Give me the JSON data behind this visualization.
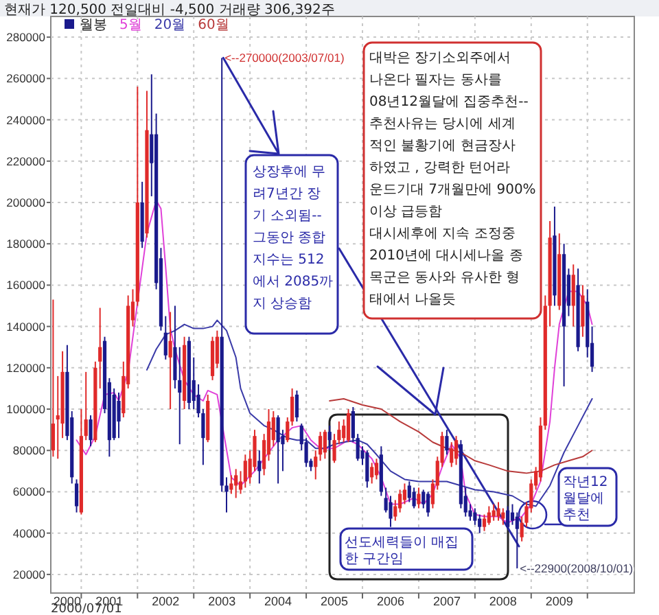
{
  "chart_data": {
    "type": "candlestick",
    "title": "현재가 120,500   전일대비 -4,500   거래량 306,392주",
    "xlim": [
      "2000-06-16",
      "2010-11-01"
    ],
    "ylim": [
      11000,
      290000
    ],
    "yticks": [
      20000,
      40000,
      60000,
      80000,
      100000,
      120000,
      140000,
      160000,
      180000,
      200000,
      220000,
      240000,
      260000,
      280000
    ],
    "xticks": [
      {
        "value": "2000-10",
        "label": "2000"
      },
      {
        "value": "2001-01",
        "label": null
      },
      {
        "value": "2001-07",
        "label": "2001"
      },
      {
        "value": "2002-01",
        "label": null
      },
      {
        "value": "2002-07",
        "label": "2002"
      },
      {
        "value": "2003-01",
        "label": null
      },
      {
        "value": "2003-07",
        "label": "2003"
      },
      {
        "value": "2004-01",
        "label": null
      },
      {
        "value": "2004-07",
        "label": "2004"
      },
      {
        "value": "2005-01",
        "label": null
      },
      {
        "value": "2005-07",
        "label": "2005"
      },
      {
        "value": "2006-01",
        "label": null
      },
      {
        "value": "2006-07",
        "label": "2006"
      },
      {
        "value": "2007-01",
        "label": null
      },
      {
        "value": "2007-07",
        "label": "2007"
      },
      {
        "value": "2008-01",
        "label": null
      },
      {
        "value": "2008-07",
        "label": "2008"
      },
      {
        "value": "2009-01",
        "label": null
      },
      {
        "value": "2009-07",
        "label": "2009"
      },
      {
        "value": "2010-01",
        "label": null
      }
    ],
    "grid": true,
    "legend": "top left",
    "series": [
      {
        "color": "#e02a2a",
        "x": [
          "2000-07",
          "2000-08",
          "2000-09",
          "2001-01",
          "2001-02",
          "2001-04",
          "2001-05",
          "2001-10",
          "2001-11",
          "2001-12",
          "2002-01",
          "2002-03",
          "2002-08",
          "2002-11",
          "2003-04",
          "2003-05",
          "2003-06",
          "2003-09",
          "2003-10",
          "2003-11",
          "2003-12",
          "2004-01",
          "2004-02",
          "2004-04",
          "2004-05",
          "2004-06",
          "2004-09",
          "2004-10",
          "2005-03",
          "2005-04",
          "2005-05",
          "2005-07",
          "2005-08",
          "2005-09",
          "2005-10",
          "2006-03",
          "2006-04",
          "2006-08",
          "2006-09",
          "2006-10",
          "2007-01",
          "2007-04",
          "2007-05",
          "2007-06",
          "2007-08",
          "2007-09",
          "2008-03",
          "2008-04",
          "2008-05",
          "2008-06",
          "2008-07",
          "2008-11",
          "2008-12",
          "2009-01",
          "2009-02",
          "2009-03",
          "2009-04",
          "2009-05",
          "2009-07",
          "2009-10",
          "2009-12"
        ],
        "ohlc": [
          [
            80000,
            153000,
            77000,
            93000
          ],
          [
            95000,
            116000,
            76000,
            97000
          ],
          [
            93000,
            128000,
            86000,
            118000
          ],
          [
            50000,
            100000,
            49000,
            87000
          ],
          [
            87000,
            118000,
            85000,
            95000
          ],
          [
            85000,
            123000,
            84000,
            120000
          ],
          [
            123000,
            149000,
            110000,
            130000
          ],
          [
            98000,
            123000,
            96000,
            116000
          ],
          [
            112000,
            155000,
            110000,
            150000
          ],
          [
            143000,
            158000,
            140000,
            152000
          ],
          [
            152000,
            256000,
            150000,
            200000
          ],
          [
            185000,
            254000,
            183000,
            235000
          ],
          [
            125000,
            147000,
            100000,
            133000
          ],
          [
            104000,
            135000,
            100000,
            131000
          ],
          [
            85000,
            107000,
            84000,
            104000
          ],
          [
            116000,
            135000,
            114000,
            133000
          ],
          [
            122000,
            138000,
            120000,
            135000
          ],
          [
            61000,
            68000,
            59000,
            64000
          ],
          [
            63000,
            71000,
            57000,
            68000
          ],
          [
            61000,
            70000,
            59000,
            65000
          ],
          [
            65000,
            78000,
            62000,
            75000
          ],
          [
            67000,
            80000,
            64000,
            76000
          ],
          [
            72000,
            90000,
            70000,
            87000
          ],
          [
            71000,
            88000,
            68000,
            85000
          ],
          [
            78000,
            100000,
            75000,
            94000
          ],
          [
            85000,
            99000,
            82000,
            96000
          ],
          [
            85000,
            96000,
            84000,
            94000
          ],
          [
            94000,
            110000,
            92000,
            106000
          ],
          [
            72000,
            80000,
            66000,
            77000
          ],
          [
            78000,
            89000,
            75000,
            87000
          ],
          [
            79000,
            90000,
            76000,
            89000
          ],
          [
            75000,
            88000,
            74000,
            85000
          ],
          [
            85000,
            94000,
            83000,
            90000
          ],
          [
            86000,
            95000,
            84000,
            92000
          ],
          [
            85000,
            100000,
            84000,
            98000
          ],
          [
            67000,
            74000,
            64000,
            72000
          ],
          [
            68000,
            76000,
            66000,
            74000
          ],
          [
            48000,
            56000,
            46000,
            53000
          ],
          [
            52000,
            61000,
            50000,
            59000
          ],
          [
            56000,
            64000,
            54000,
            61000
          ],
          [
            54000,
            62000,
            52000,
            59000
          ],
          [
            54000,
            66000,
            52000,
            64000
          ],
          [
            63000,
            77000,
            61000,
            75000
          ],
          [
            74000,
            89000,
            72000,
            87000
          ],
          [
            74000,
            84000,
            72000,
            81000
          ],
          [
            76000,
            87000,
            73000,
            85000
          ],
          [
            43000,
            49000,
            41000,
            47000
          ],
          [
            45000,
            53000,
            44000,
            50000
          ],
          [
            48000,
            54000,
            46000,
            51000
          ],
          [
            48000,
            55000,
            46000,
            52000
          ],
          [
            47000,
            52000,
            44000,
            50000
          ],
          [
            38000,
            48000,
            36000,
            45000
          ],
          [
            45000,
            55000,
            43000,
            53000
          ],
          [
            52000,
            66000,
            50000,
            64000
          ],
          [
            63000,
            72000,
            61000,
            70000
          ],
          [
            67000,
            96000,
            65000,
            92000
          ],
          [
            92000,
            155000,
            90000,
            150000
          ],
          [
            150000,
            191000,
            140000,
            183000
          ],
          [
            150000,
            185000,
            148000,
            175000
          ],
          [
            150000,
            170000,
            140000,
            165000
          ],
          [
            140000,
            160000,
            135000,
            155000
          ]
        ]
      },
      {
        "name": "월봉",
        "color": "#1a1a8c",
        "x": [
          "2000-10",
          "2000-11",
          "2000-12",
          "2001-03",
          "2001-06",
          "2001-07",
          "2001-08",
          "2001-09",
          "2002-02",
          "2002-04",
          "2002-05",
          "2002-06",
          "2002-07",
          "2002-09",
          "2002-10",
          "2002-12",
          "2003-01",
          "2003-02",
          "2003-03",
          "2003-07",
          "2003-08",
          "2004-03",
          "2004-07",
          "2004-08",
          "2004-11",
          "2004-12",
          "2005-01",
          "2005-02",
          "2005-06",
          "2005-11",
          "2005-12",
          "2006-01",
          "2006-02",
          "2006-05",
          "2006-06",
          "2006-07",
          "2006-11",
          "2006-12",
          "2007-02",
          "2007-03",
          "2007-07",
          "2007-10",
          "2007-11",
          "2007-12",
          "2008-01",
          "2008-02",
          "2008-08",
          "2008-09",
          "2008-10",
          "2009-06",
          "2009-08",
          "2009-09",
          "2009-11",
          "2010-01",
          "2010-02"
        ],
        "ohlc": [
          [
            118000,
            131000,
            85000,
            87000
          ],
          [
            96000,
            99000,
            64000,
            67000
          ],
          [
            64000,
            66000,
            50000,
            53000
          ],
          [
            95000,
            97000,
            82000,
            85000
          ],
          [
            133000,
            135000,
            98000,
            100000
          ],
          [
            113000,
            115000,
            77000,
            85000
          ],
          [
            107000,
            110000,
            85000,
            86000
          ],
          [
            104000,
            108000,
            86000,
            94000
          ],
          [
            200000,
            210000,
            178000,
            181000
          ],
          [
            233000,
            262000,
            203000,
            219000
          ],
          [
            233000,
            243000,
            158000,
            161000
          ],
          [
            173000,
            178000,
            138000,
            140000
          ],
          [
            137000,
            145000,
            124000,
            126000
          ],
          [
            130000,
            150000,
            110000,
            114000
          ],
          [
            114000,
            130000,
            83000,
            108000
          ],
          [
            133000,
            135000,
            100000,
            103000
          ],
          [
            114000,
            125000,
            100000,
            104000
          ],
          [
            107000,
            112000,
            96000,
            98000
          ],
          [
            98000,
            100000,
            73000,
            86000
          ],
          [
            135000,
            270000,
            60000,
            63000
          ],
          [
            63000,
            67000,
            50000,
            60000
          ],
          [
            75000,
            80000,
            64000,
            70000
          ],
          [
            96000,
            97000,
            64000,
            84000
          ],
          [
            87000,
            90000,
            70000,
            83000
          ],
          [
            107000,
            109000,
            94000,
            96000
          ],
          [
            92000,
            93000,
            80000,
            83000
          ],
          [
            84000,
            86000,
            72000,
            74000
          ],
          [
            75000,
            76000,
            70000,
            72000
          ],
          [
            89000,
            92000,
            80000,
            85000
          ],
          [
            99000,
            101000,
            84000,
            86000
          ],
          [
            86000,
            88000,
            75000,
            76000
          ],
          [
            80000,
            82000,
            73000,
            76000
          ],
          [
            79000,
            80000,
            62000,
            65000
          ],
          [
            78000,
            82000,
            58000,
            60000
          ],
          [
            57000,
            62000,
            50000,
            51000
          ],
          [
            55000,
            58000,
            43000,
            47000
          ],
          [
            63000,
            65000,
            55000,
            57000
          ],
          [
            60000,
            62000,
            52000,
            53000
          ],
          [
            60000,
            61000,
            52000,
            54000
          ],
          [
            59000,
            60000,
            48000,
            50000
          ],
          [
            87000,
            90000,
            78000,
            80000
          ],
          [
            83000,
            85000,
            52000,
            54000
          ],
          [
            58000,
            62000,
            48000,
            50000
          ],
          [
            51000,
            54000,
            46000,
            48000
          ],
          [
            50000,
            52000,
            44000,
            46000
          ],
          [
            47000,
            49000,
            40000,
            43000
          ],
          [
            51000,
            53000,
            42000,
            43000
          ],
          [
            50000,
            54000,
            44000,
            46000
          ],
          [
            48000,
            50000,
            22900,
            42000
          ],
          [
            184000,
            198000,
            150000,
            155000
          ],
          [
            175000,
            180000,
            111000,
            140000
          ],
          [
            165000,
            168000,
            145000,
            150000
          ],
          [
            160000,
            168000,
            128000,
            130000
          ],
          [
            152000,
            158000,
            125000,
            130000
          ],
          [
            132000,
            140000,
            118000,
            120500
          ]
        ]
      },
      {
        "type": "line",
        "name": "5월",
        "color": "#e040d8",
        "x": [
          "2000-12",
          "2001-02",
          "2001-04",
          "2001-06",
          "2001-08",
          "2001-09",
          "2001-11",
          "2002-03",
          "2002-05",
          "2002-06",
          "2002-07",
          "2002-08",
          "2002-09",
          "2002-11",
          "2003-01",
          "2003-03",
          "2003-04",
          "2003-06",
          "2003-09",
          "2003-11",
          "2004-02",
          "2004-05",
          "2004-07",
          "2004-08",
          "2004-10",
          "2004-12",
          "2005-02",
          "2005-04",
          "2005-07",
          "2005-10",
          "2005-12",
          "2006-03",
          "2006-05",
          "2006-07",
          "2006-09",
          "2006-12",
          "2007-02",
          "2007-04",
          "2007-06",
          "2007-08",
          "2007-10",
          "2007-11",
          "2008-01",
          "2008-03",
          "2008-06",
          "2008-08",
          "2008-11",
          "2009-01",
          "2009-03",
          "2009-05",
          "2009-06",
          "2009-07",
          "2009-09",
          "2009-11",
          "2010-01",
          "2010-02"
        ],
        "values": [
          85000,
          78000,
          87000,
          107000,
          108000,
          104000,
          118000,
          185000,
          201000,
          197000,
          169000,
          139000,
          129000,
          114000,
          107000,
          104000,
          109000,
          107000,
          67000,
          63000,
          70000,
          79000,
          85000,
          87000,
          91000,
          92000,
          85000,
          81000,
          81000,
          85000,
          83000,
          76000,
          67000,
          54000,
          54000,
          57000,
          54000,
          59000,
          72000,
          83000,
          76000,
          59000,
          49000,
          48000,
          48000,
          45000,
          48000,
          54000,
          65000,
          94000,
          120000,
          141000,
          157000,
          157000,
          150000,
          141000
        ]
      },
      {
        "type": "line",
        "name": "20월",
        "color": "#3a3aa8",
        "x": [
          "2002-03",
          "2002-05",
          "2002-07",
          "2002-09",
          "2002-11",
          "2003-01",
          "2003-03",
          "2003-05",
          "2003-06",
          "2003-08",
          "2003-10",
          "2003-11",
          "2004-01",
          "2004-04",
          "2004-06",
          "2004-09",
          "2004-11",
          "2005-01",
          "2005-03",
          "2005-05",
          "2005-07",
          "2005-09",
          "2005-12",
          "2006-02",
          "2006-04",
          "2006-07",
          "2006-10",
          "2007-01",
          "2007-04",
          "2007-07",
          "2007-10",
          "2008-01",
          "2008-05",
          "2008-09",
          "2008-12",
          "2009-02",
          "2009-05",
          "2009-08",
          "2009-11",
          "2010-02"
        ],
        "values": [
          119000,
          129000,
          136000,
          138000,
          141000,
          139000,
          139000,
          140000,
          143000,
          138000,
          125000,
          110000,
          98000,
          92000,
          90000,
          86000,
          85000,
          85000,
          81000,
          81000,
          83000,
          84000,
          85000,
          83000,
          78000,
          70000,
          66000,
          65000,
          65000,
          65000,
          63000,
          61000,
          60000,
          58000,
          54000,
          53000,
          63000,
          79000,
          92000,
          105000
        ]
      },
      {
        "type": "line",
        "name": "60월",
        "color": "#b83a3a",
        "x": [
          "2005-06",
          "2005-09",
          "2006-01",
          "2006-05",
          "2006-09",
          "2007-01",
          "2007-04",
          "2007-07",
          "2007-10",
          "2008-01",
          "2008-04",
          "2008-08",
          "2008-12",
          "2009-03",
          "2009-06",
          "2009-09",
          "2009-12",
          "2010-02"
        ],
        "values": [
          104000,
          105000,
          102000,
          100000,
          94000,
          89000,
          84000,
          81000,
          79000,
          75000,
          73000,
          70000,
          69000,
          70000,
          73000,
          75000,
          77000,
          80000
        ]
      }
    ],
    "annotations": [
      {
        "text": "<--270000(2003/07/01)",
        "x": "2003-07",
        "y": 270000
      },
      {
        "text": "<--22900(2008/10/01)",
        "x": "2008-10",
        "y": 22900
      },
      {
        "text": "상장후에 무\n려7년간 장\n기 소외됨--\n그동안 종합\n지수는 512\n에서 2085까\n지 상승함",
        "x": "2003-07",
        "y": 270000
      },
      "대박은 장기소외주에서\n나온다 필자는 동사를\n08년12월달에 집중추천--\n추천사유는 당시에 세계\n적인 불황기에 현금장사\n하였고 , 강력한 턴어라\n운드기대 7개월만에 900%\n이상 급등함\n대시세후에 지속 조정중\n2010년에 대시세나올 종\n목군은 동사와 유사한 형\n태에서 나올듯",
      "선도세력들이 매집\n한 구간임",
      "작년12\n월달에\n추천",
      "2000/07/01"
    ]
  }
}
